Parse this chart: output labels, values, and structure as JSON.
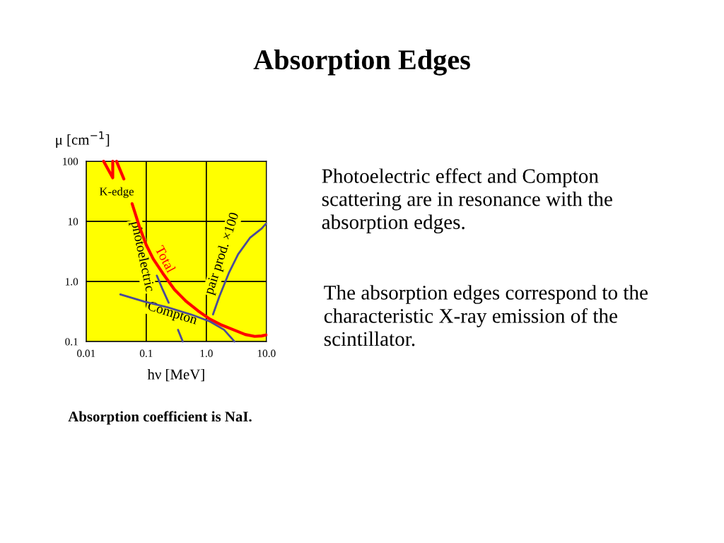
{
  "chart_data": {
    "type": "line",
    "title": "Absorption Edges",
    "xlabel": "hν [MeV]",
    "ylabel": "μ [cm$^{−1}$]",
    "log": "xy",
    "xlim": [
      0.01,
      10
    ],
    "ylim": [
      0.1,
      100
    ],
    "xticks": [
      0.01,
      0.1,
      {
        "value": 1,
        "label": "1.0"
      },
      {
        "value": 10,
        "label": "10.0"
      }
    ],
    "yticks": [
      0.1,
      {
        "value": 1,
        "label": "1.0"
      },
      10,
      100
    ],
    "grid": true,
    "legend": false,
    "marker": "none",
    "line_style": "solid",
    "series": [
      {
        "name": "Total",
        "color": "#ff0000",
        "x": [
          0.0195,
          0.0277,
          0.0277,
          null,
          0.032,
          0.0424,
          null,
          0.0582,
          0.0763,
          0.1,
          0.131,
          0.188,
          0.296,
          0.464,
          0.729,
          1.15,
          1.8,
          2.82,
          4.44,
          6.37,
          8.35,
          9.82
        ],
        "values": [
          100,
          53,
          100,
          null,
          100,
          50.8,
          null,
          19.7,
          8.35,
          4.05,
          2.36,
          1.37,
          0.73,
          0.464,
          0.324,
          0.236,
          0.188,
          0.157,
          0.131,
          0.122,
          0.124,
          0.129
        ]
      },
      {
        "name": "photoelectric",
        "color": "#4a4a9a",
        "x": [
          0.15,
          0.188,
          0.236,
          null,
          0.338,
          0.405
        ],
        "values": [
          1.25,
          0.73,
          0.443,
          null,
          0.157,
          0.1
        ]
      },
      {
        "name": "Compton",
        "color": "#4a4a9a",
        "x": [
          0.037,
          0.0914,
          0.225,
          0.556,
          1.15,
          1.97,
          2.95
        ],
        "values": [
          0.608,
          0.464,
          0.371,
          0.282,
          0.215,
          0.157,
          0.1
        ]
      },
      {
        "name": "pair prod. ×100",
        "color": "#4a4a9a",
        "x": [
          1.29,
          1.64,
          2.36,
          3.38,
          5.31,
          8.35,
          9.82
        ],
        "values": [
          0.282,
          0.556,
          1.37,
          2.83,
          5.31,
          7.62,
          9.14
        ]
      }
    ],
    "annotations": [
      {
        "text": "K-edge",
        "x": 0.0277,
        "y": 53
      },
      "Absorption coefficient is NaI.",
      "Photoelectric effect and Compton scattering are in resonance with the absorption edges.",
      "The absorption edges correspond to the characteristic X-ray emission of the scintillator."
    ]
  }
}
